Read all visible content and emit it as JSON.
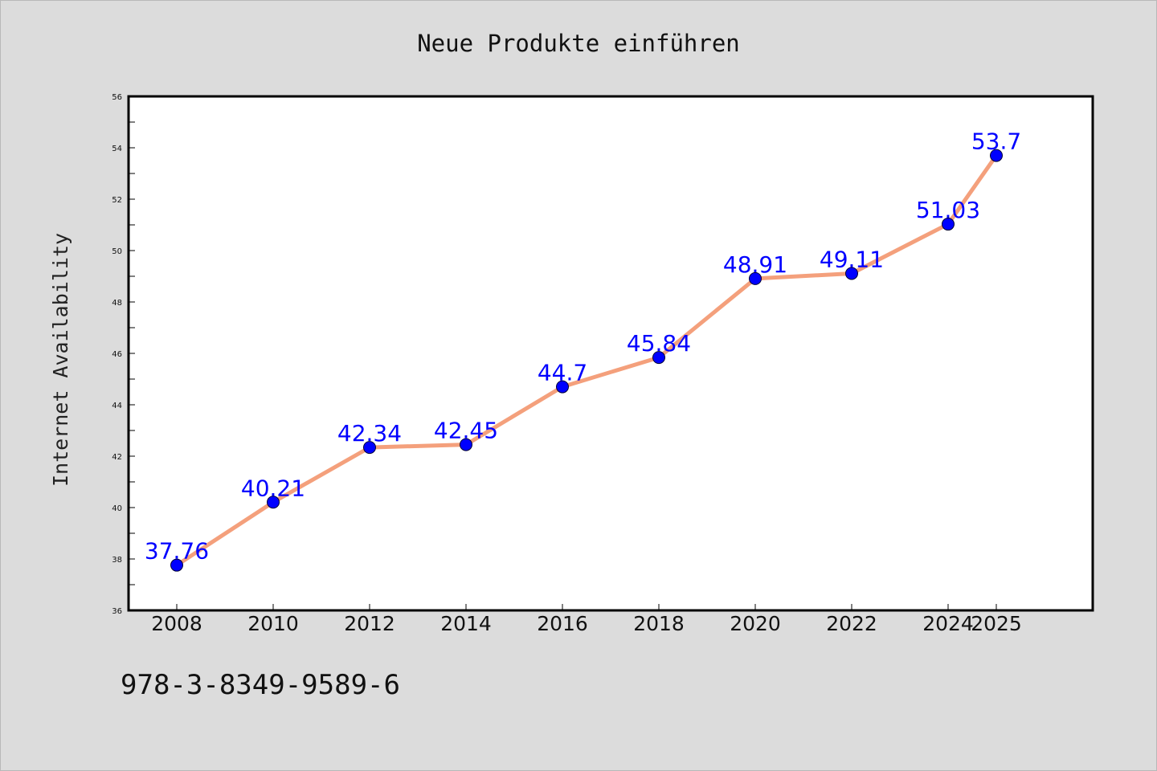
{
  "chart_data": {
    "type": "line",
    "title": "Neue Produkte einführen",
    "xlabel": "",
    "ylabel": "Internet Availability",
    "x": [
      "2008",
      "2010",
      "2012",
      "2014",
      "2016",
      "2018",
      "2020",
      "2022",
      "2024",
      "2025"
    ],
    "series": [
      {
        "values": [
          37.76,
          40.21,
          42.34,
          42.45,
          44.7,
          45.84,
          48.91,
          49.11,
          51.03,
          53.7
        ],
        "labels": [
          "37.76",
          "40.21",
          "42.34",
          "42.45",
          "44.7",
          "45.84",
          "48.91",
          "49.11",
          "51.03",
          "53.7"
        ],
        "line_color": "#f4a07c",
        "marker_color": "#0000ff",
        "label_color": "#0000ff"
      }
    ],
    "ylim": [
      36,
      56
    ],
    "yticks": [
      "36",
      "38",
      "40",
      "42",
      "44",
      "46",
      "48",
      "50",
      "52",
      "54",
      "56"
    ],
    "grid": false,
    "legend": "none"
  },
  "footer": {
    "code": "978-3-8349-9589-6"
  },
  "colors": {
    "background": "#dcdcdc",
    "plot_background": "#ffffff",
    "axis": "#000000"
  }
}
